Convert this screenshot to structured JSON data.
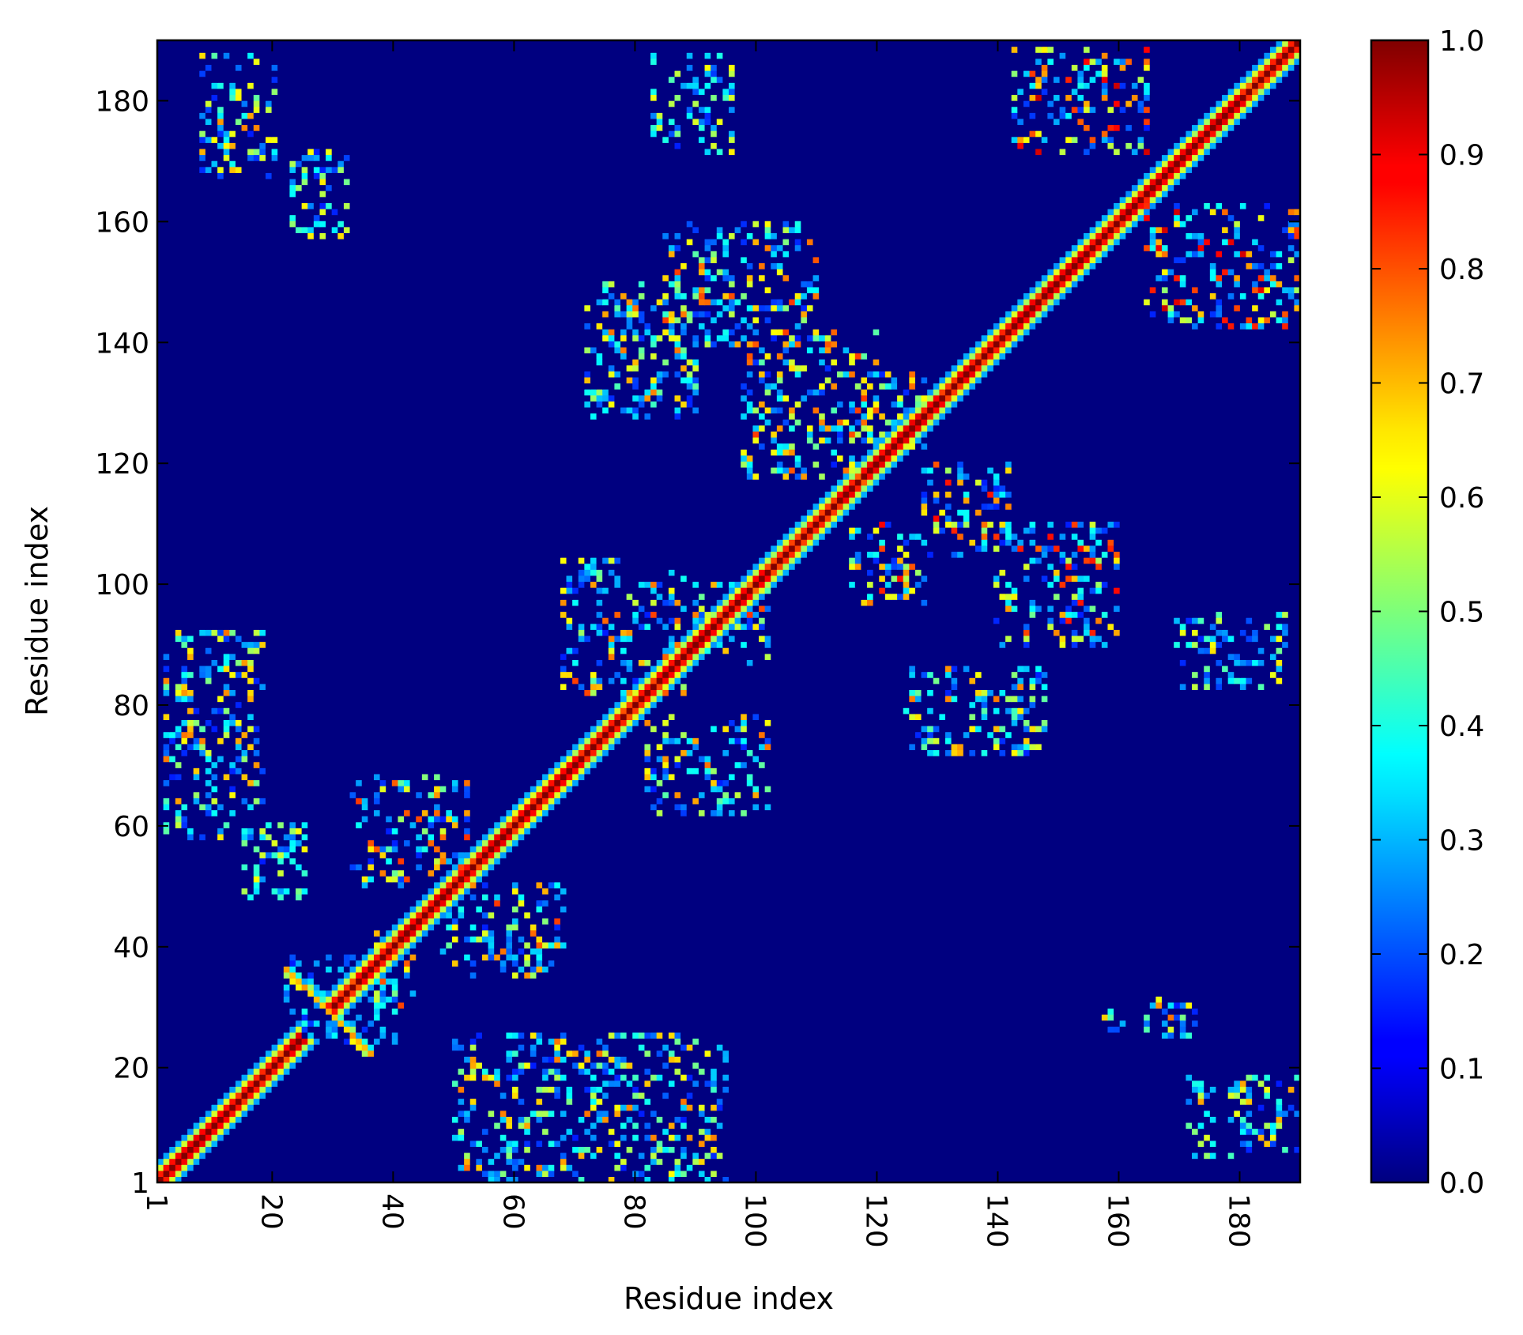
{
  "chart_data": {
    "type": "heatmap",
    "title": "",
    "xlabel": "Residue index",
    "ylabel": "Residue index",
    "n_residues": 190,
    "x_ticks": [
      1,
      20,
      40,
      60,
      80,
      100,
      120,
      140,
      160,
      180
    ],
    "y_ticks": [
      1,
      20,
      40,
      60,
      80,
      100,
      120,
      140,
      160,
      180
    ],
    "x_tick_rotation_deg": 90,
    "xlim": [
      1,
      190
    ],
    "ylim": [
      1,
      190
    ],
    "grid": false,
    "colormap": "jet",
    "colorbar": {
      "range": [
        0.0,
        1.0
      ],
      "ticks": [
        "0.0",
        "0.1",
        "0.2",
        "0.3",
        "0.4",
        "0.5",
        "0.6",
        "0.7",
        "0.8",
        "0.9",
        "1.0"
      ],
      "placement": "right"
    },
    "background_value": 0.0,
    "diagonal": {
      "value": 1.0,
      "segments": [
        [
          1,
          24
        ],
        [
          30,
          190
        ]
      ],
      "band_profile_outer_to_inner": [
        0.3,
        0.6,
        0.9,
        1.0
      ]
    },
    "cross_feature": {
      "center": [
        29,
        29
      ],
      "arms": [
        [
          35,
          22
        ],
        [
          22,
          36
        ]
      ],
      "value": 0.75
    },
    "contact_clusters": [
      {
        "x": [
          8,
          20
        ],
        "y": [
          168,
          188
        ],
        "value": 0.7
      },
      {
        "x": [
          23,
          32
        ],
        "y": [
          158,
          172
        ],
        "value": 0.6
      },
      {
        "x": [
          83,
          96
        ],
        "y": [
          172,
          188
        ],
        "value": 0.6
      },
      {
        "x": [
          143,
          165
        ],
        "y": [
          172,
          189
        ],
        "value": 0.85
      },
      {
        "x": [
          165,
          190
        ],
        "y": [
          143,
          163
        ],
        "value": 0.85
      },
      {
        "x": [
          85,
          110
        ],
        "y": [
          140,
          160
        ],
        "value": 0.75
      },
      {
        "x": [
          72,
          90
        ],
        "y": [
          128,
          150
        ],
        "value": 0.7
      },
      {
        "x": [
          98,
          120
        ],
        "y": [
          118,
          142
        ],
        "value": 0.75
      },
      {
        "x": [
          118,
          128
        ],
        "y": [
          123,
          135
        ],
        "value": 0.7
      },
      {
        "x": [
          128,
          142
        ],
        "y": [
          105,
          120
        ],
        "value": 0.8
      },
      {
        "x": [
          116,
          128
        ],
        "y": [
          97,
          110
        ],
        "value": 0.8
      },
      {
        "x": [
          140,
          160
        ],
        "y": [
          90,
          110
        ],
        "value": 0.8
      },
      {
        "x": [
          125,
          148
        ],
        "y": [
          72,
          86
        ],
        "value": 0.7
      },
      {
        "x": [
          170,
          188
        ],
        "y": [
          83,
          95
        ],
        "value": 0.6
      },
      {
        "x": [
          68,
          88
        ],
        "y": [
          82,
          104
        ],
        "value": 0.75
      },
      {
        "x": [
          90,
          102
        ],
        "y": [
          87,
          100
        ],
        "value": 0.75
      },
      {
        "x": [
          82,
          102
        ],
        "y": [
          62,
          78
        ],
        "value": 0.7
      },
      {
        "x": [
          2,
          18
        ],
        "y": [
          58,
          92
        ],
        "value": 0.7
      },
      {
        "x": [
          15,
          25
        ],
        "y": [
          48,
          60
        ],
        "value": 0.6
      },
      {
        "x": [
          33,
          52
        ],
        "y": [
          50,
          68
        ],
        "value": 0.75
      },
      {
        "x": [
          48,
          68
        ],
        "y": [
          35,
          50
        ],
        "value": 0.75
      },
      {
        "x": [
          37,
          43
        ],
        "y": [
          30,
          42
        ],
        "value": 0.8
      },
      {
        "x": [
          50,
          95
        ],
        "y": [
          1,
          25
        ],
        "value": 0.7
      },
      {
        "x": [
          158,
          173
        ],
        "y": [
          25,
          31
        ],
        "value": 0.7
      },
      {
        "x": [
          172,
          190
        ],
        "y": [
          5,
          18
        ],
        "value": 0.65
      },
      {
        "x": [
          22,
          40
        ],
        "y": [
          24,
          38
        ],
        "value": 0.35
      }
    ]
  }
}
